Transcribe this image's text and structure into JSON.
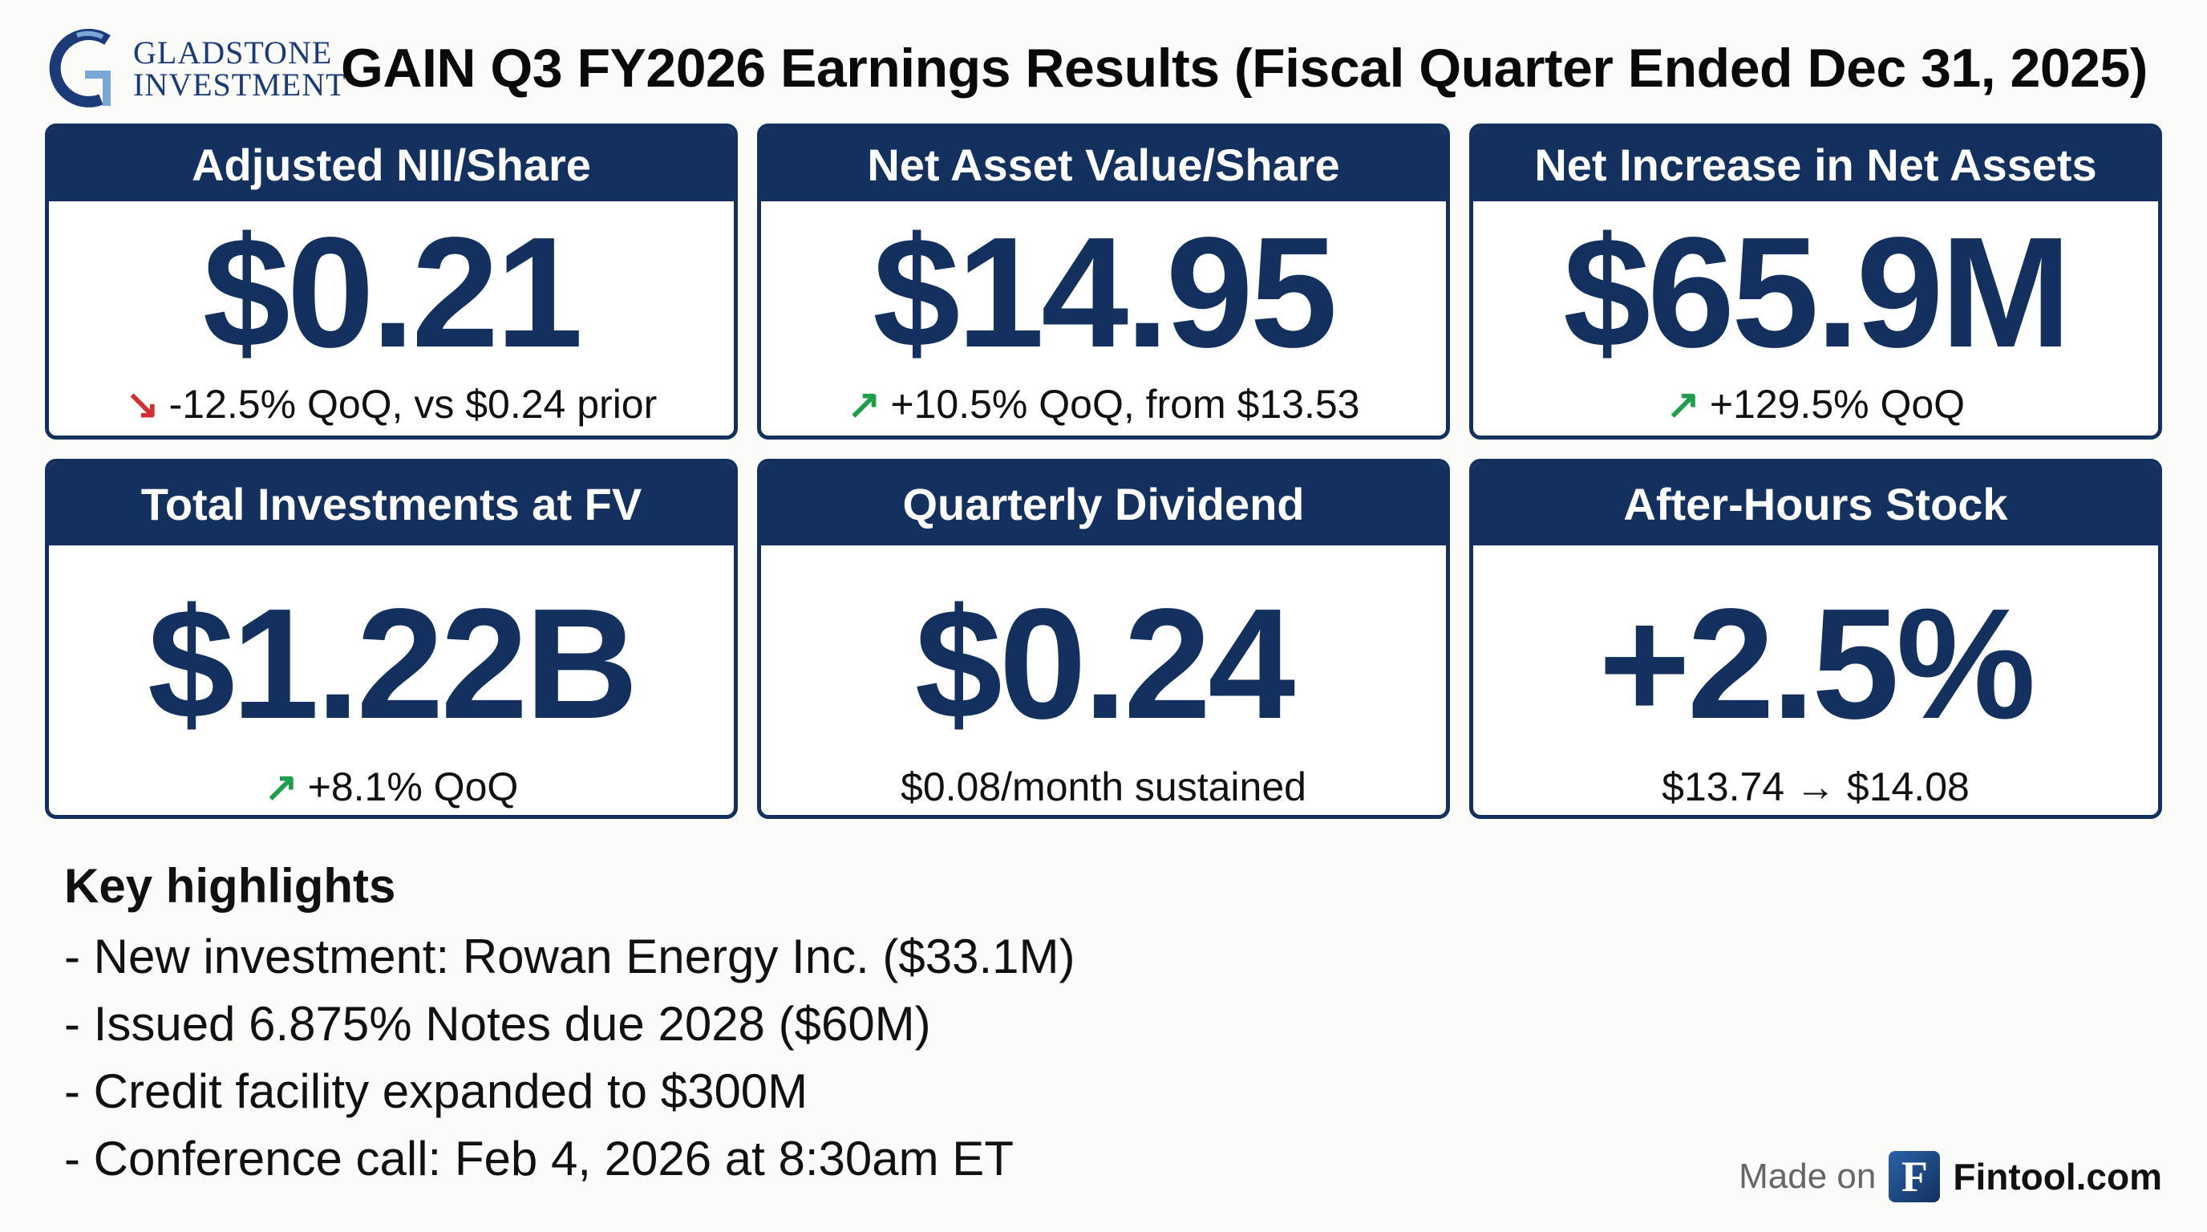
{
  "logo": {
    "line1": "GLADSTONE",
    "line2": "INVESTMENT"
  },
  "title": "GAIN Q3 FY2026 Earnings Results (Fiscal Quarter Ended Dec 31, 2025)",
  "cards": [
    {
      "label": "Adjusted NII/Share",
      "value": "$0.21",
      "arrow": "↘",
      "trend": "down",
      "sub": "-12.5% QoQ, vs $0.24 prior"
    },
    {
      "label": "Net Asset Value/Share",
      "value": "$14.95",
      "arrow": "↗",
      "trend": "up",
      "sub": "+10.5% QoQ, from $13.53"
    },
    {
      "label": "Net Increase in Net Assets",
      "value": "$65.9M",
      "arrow": "↗",
      "trend": "up",
      "sub": "+129.5% QoQ"
    },
    {
      "label": "Total Investments at FV",
      "value": "$1.22B",
      "arrow": "↗",
      "trend": "up",
      "sub": "+8.1% QoQ"
    },
    {
      "label": "Quarterly Dividend",
      "value": "$0.24",
      "sub": "$0.08/month sustained"
    },
    {
      "label": "After-Hours Stock",
      "value": "+2.5%",
      "sub": "$13.74 → $14.08"
    }
  ],
  "highlights": {
    "heading": "Key highlights",
    "items": [
      "- New investment: Rowan Energy Inc. ($33.1M)",
      "- Issued 6.875% Notes due 2028 ($60M)",
      "- Credit facility expanded to $300M",
      "- Conference call: Feb 4, 2026 at 8:30am ET"
    ]
  },
  "footer": {
    "made_on": "Made on",
    "logo_letter": "F",
    "brand": "Fintool.com"
  },
  "colors": {
    "navy": "#13305e",
    "up": "#1e9e4a",
    "down": "#d32f2f"
  }
}
